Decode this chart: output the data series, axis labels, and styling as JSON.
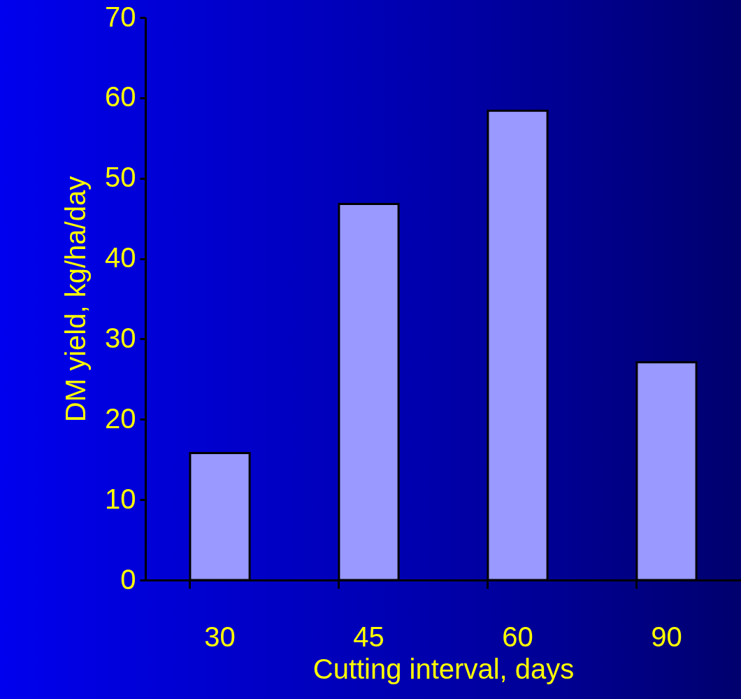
{
  "chart_data": {
    "type": "bar",
    "xlabel": "Cutting interval, days",
    "ylabel": "DM yield, kg/ha/day",
    "categories": [
      "30",
      "45",
      "60",
      "90"
    ],
    "values": [
      15.8,
      46.8,
      58.4,
      27.1
    ],
    "color": "#9999ff",
    "ylim": [
      0,
      70
    ],
    "yticks": [
      0,
      10,
      20,
      30,
      40,
      50,
      60,
      70
    ],
    "grid": false
  }
}
